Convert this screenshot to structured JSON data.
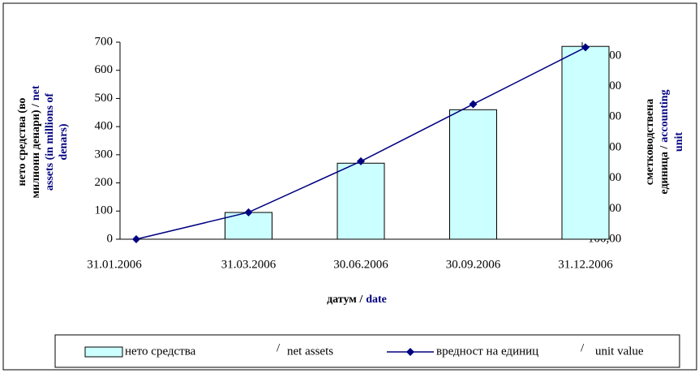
{
  "chart_data": {
    "type": "bar_line",
    "categories": [
      "31.01.2006",
      "31.03.2006",
      "30.06.2006",
      "30.09.2006",
      "31.12.2006"
    ],
    "series": [
      {
        "name": "нето средства",
        "color": "#ccffff",
        "values": [
          0,
          95,
          270,
          460,
          685
        ]
      },
      {
        "name": "вредност на единиц",
        "color": "#000080",
        "axis": "y2",
        "values": [
          100.0,
          100.88,
          102.55,
          104.42,
          106.28
        ]
      }
    ],
    "series_english": [
      "net assets",
      "unit value"
    ],
    "separator": "/",
    "label_colors": {
      "black": "#000000",
      "blue": "#000080"
    },
    "ylabel": [
      {
        "black": "нето средства (во"
      },
      {
        "black": "милиони денари) /",
        "blue": "net"
      },
      {
        "blue": "assets (in millions of"
      },
      {
        "blue": "denars)"
      }
    ],
    "y2label": [
      {
        "black": "сметководствена"
      },
      {
        "black": "единица /",
        "blue": "accounting"
      },
      {
        "blue": "unit"
      }
    ],
    "xlabel": {
      "black": "датум /",
      "blue": "date"
    },
    "ylim": [
      0,
      700
    ],
    "yticks": [
      0,
      100,
      200,
      300,
      400,
      500,
      600,
      700
    ],
    "y2lim": [
      100,
      106.45
    ],
    "y2ticks": [
      {
        "value": 100,
        "label": "100,00"
      },
      {
        "value": 101,
        "label": "101,00"
      },
      {
        "value": 102,
        "label": "102,00"
      },
      {
        "value": 103,
        "label": "103,00"
      },
      {
        "value": 104,
        "label": "104,00"
      },
      {
        "value": 105,
        "label": "105,00"
      },
      {
        "value": 106,
        "label": "106,00"
      }
    ],
    "legend": "bottom"
  }
}
